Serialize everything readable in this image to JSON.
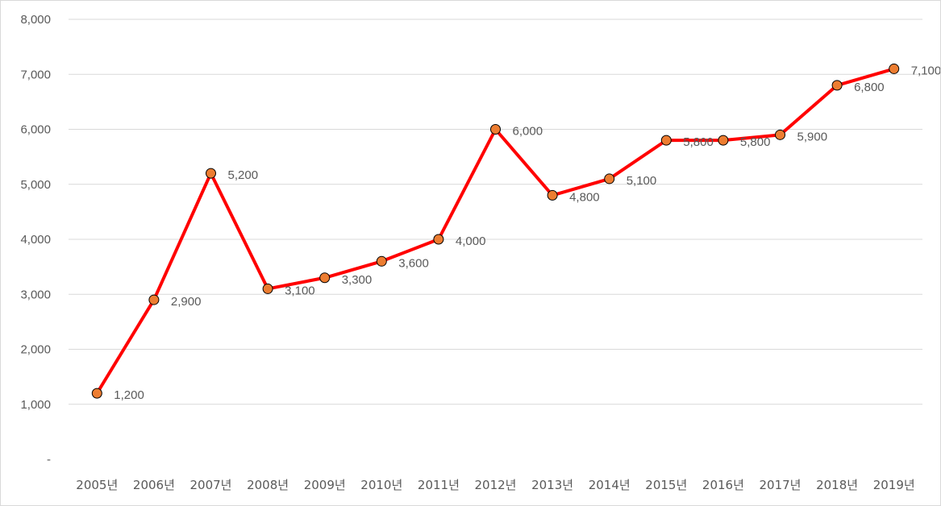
{
  "chart_data": {
    "type": "line",
    "categories": [
      "2005년",
      "2006년",
      "2007년",
      "2008년",
      "2009년",
      "2010년",
      "2011년",
      "2012년",
      "2013년",
      "2014년",
      "2015년",
      "2016년",
      "2017년",
      "2018년",
      "2019년"
    ],
    "series": [
      {
        "values": [
          1200,
          2900,
          5200,
          3100,
          3300,
          3600,
          4000,
          6000,
          4800,
          5100,
          5800,
          5800,
          5900,
          6800,
          7100
        ],
        "data_labels": [
          "1,200",
          "2,900",
          "5,200",
          "3,100",
          "3,300",
          "3,600",
          "4,000",
          "6,000",
          "4,800",
          "5,100",
          "5,800",
          "5,800",
          "5,900",
          "6,800",
          "7,100"
        ],
        "line_color": "#ff0000",
        "marker_color": "#ed7d31"
      }
    ],
    "ylim": [
      0,
      8000
    ],
    "y_ticks": [
      0,
      1000,
      2000,
      3000,
      4000,
      5000,
      6000,
      7000,
      8000
    ],
    "y_tick_labels": [
      "-",
      "1,000",
      "2,000",
      "3,000",
      "4,000",
      "5,000",
      "6,000",
      "7,000",
      "8,000"
    ],
    "grid": true,
    "gridline_color": "#d9d9d9",
    "legend": "none"
  }
}
